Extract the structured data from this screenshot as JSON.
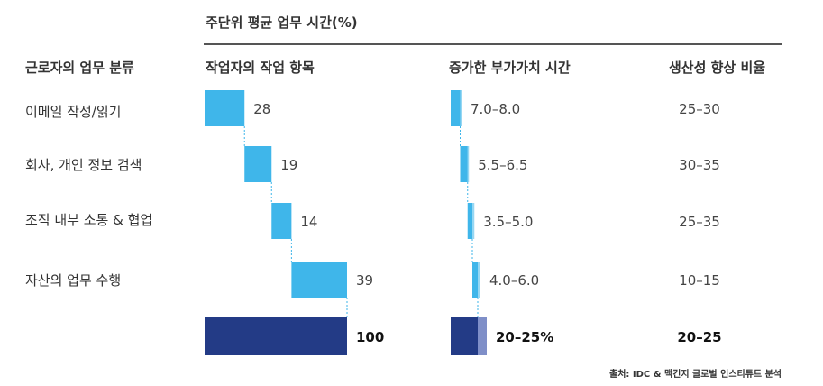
{
  "title": "주단위 평균 업무 시간(%)",
  "headers": {
    "category": "근로자의 업무 분류",
    "share": "작업자의 작업 항목",
    "hours": "증가한 부가가치 시간",
    "productivity": "생산성 향상 비율"
  },
  "source": "출처: IDC & 맥킨지 글로벌 인스티튜트 분석",
  "colors": {
    "bar": "#3fb6ea",
    "total": "#233b86",
    "total_accent": "#7f8fc8",
    "connector": "#3fb6ea"
  },
  "chart_data": {
    "type": "bar",
    "categories": [
      "이메일 작성/읽기",
      "회사, 개인 정보 검색",
      "조직 내부 소통 & 협업",
      "자산의 업무 수행"
    ],
    "share_values": [
      28,
      19,
      14,
      39
    ],
    "share_labels": [
      "28",
      "19",
      "14",
      "39"
    ],
    "share_total": 100,
    "share_total_label": "100",
    "hours_ranges": [
      [
        7.0,
        8.0
      ],
      [
        5.5,
        6.5
      ],
      [
        3.5,
        5.0
      ],
      [
        4.0,
        6.0
      ]
    ],
    "hours_labels": [
      "7.0–8.0",
      "5.5–6.5",
      "3.5–5.0",
      "4.0–6.0"
    ],
    "hours_total_label": "20–25%",
    "productivity_labels": [
      "25–30",
      "30–35",
      "25–35",
      "10–15"
    ],
    "productivity_total_label": "20–25"
  }
}
